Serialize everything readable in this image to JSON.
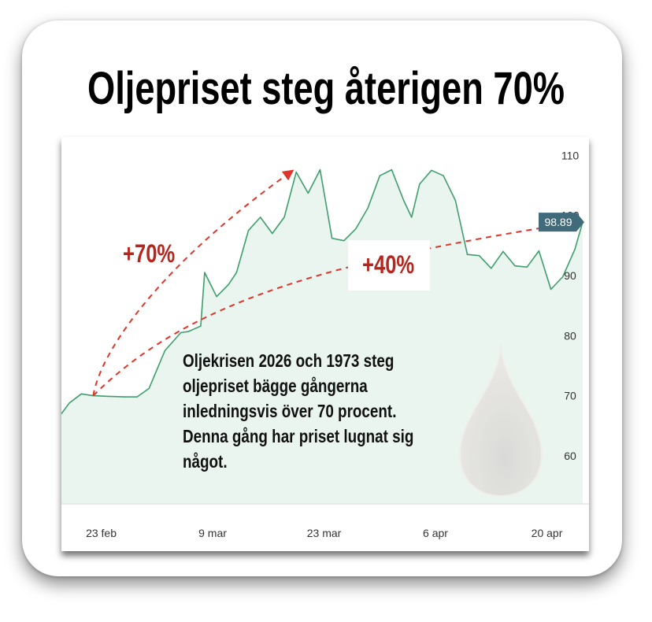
{
  "headline": "Oljepriset steg återigen 70%",
  "annotation": "Oljekrisen 2026 och 1973 steg oljepriset bägge gångerna inledningsvis över 70 procent. Denna gång har priset lugnat sig något.",
  "gain_labels": {
    "first": "+70%",
    "second": "+40%"
  },
  "price_badge": "98.89",
  "colors": {
    "line": "#3e9e6e",
    "area": "#e9f5ee",
    "arrow": "#e0342a",
    "gain_text": "#b5261e",
    "badge": "#3f6b7a"
  },
  "icon": "oil-drop-icon",
  "chart_data": {
    "type": "area",
    "title": "",
    "xlabel": "",
    "ylabel": "",
    "ylim": [
      52,
      112
    ],
    "y_ticks": [
      60,
      70,
      80,
      90,
      100,
      110
    ],
    "x_tick_labels": [
      "23 feb",
      "9 mar",
      "23 mar",
      "6 apr",
      "20 apr"
    ],
    "x_tick_days": [
      0,
      14,
      28,
      42,
      56
    ],
    "x_range_days": [
      -5,
      60.5
    ],
    "grid": false,
    "last_value": 98.89,
    "series": [
      {
        "name": "",
        "x_days": [
          -5,
          -4,
          -2.5,
          -1,
          1,
          3,
          4.5,
          6,
          8,
          10,
          11,
          12.5,
          13,
          14.5,
          16,
          17,
          18.5,
          20,
          21.5,
          23,
          24.5,
          26,
          27.5,
          29,
          30.5,
          32,
          33.5,
          35,
          36.5,
          38,
          39,
          40,
          41.5,
          43,
          44.5,
          46,
          47.5,
          49,
          50.5,
          52,
          53.5,
          55,
          56.5,
          58,
          59.5,
          60.5
        ],
        "values": [
          67,
          68.8,
          70.3,
          70,
          69.9,
          69.8,
          69.8,
          71.2,
          77.5,
          80.5,
          80.7,
          81.6,
          90.5,
          86.5,
          88.5,
          90.5,
          97.5,
          99.7,
          97,
          99.7,
          107.2,
          103.7,
          107.6,
          96.2,
          95.8,
          97.8,
          101.2,
          106.6,
          107.6,
          102.5,
          99.7,
          105.2,
          107.5,
          106.6,
          102.5,
          93.5,
          93.3,
          91.2,
          94,
          91.6,
          91.4,
          94.1,
          87.7,
          89.8,
          94.3,
          98.9
        ]
      }
    ],
    "annotation_arrows": [
      {
        "label": "+70%",
        "from_day": -1,
        "from_value": 70,
        "to_day": 24,
        "to_value": 107.4
      },
      {
        "label": "+40%",
        "from_day": -1,
        "from_value": 70,
        "to_day": 58.5,
        "to_value": 98.6
      }
    ]
  }
}
